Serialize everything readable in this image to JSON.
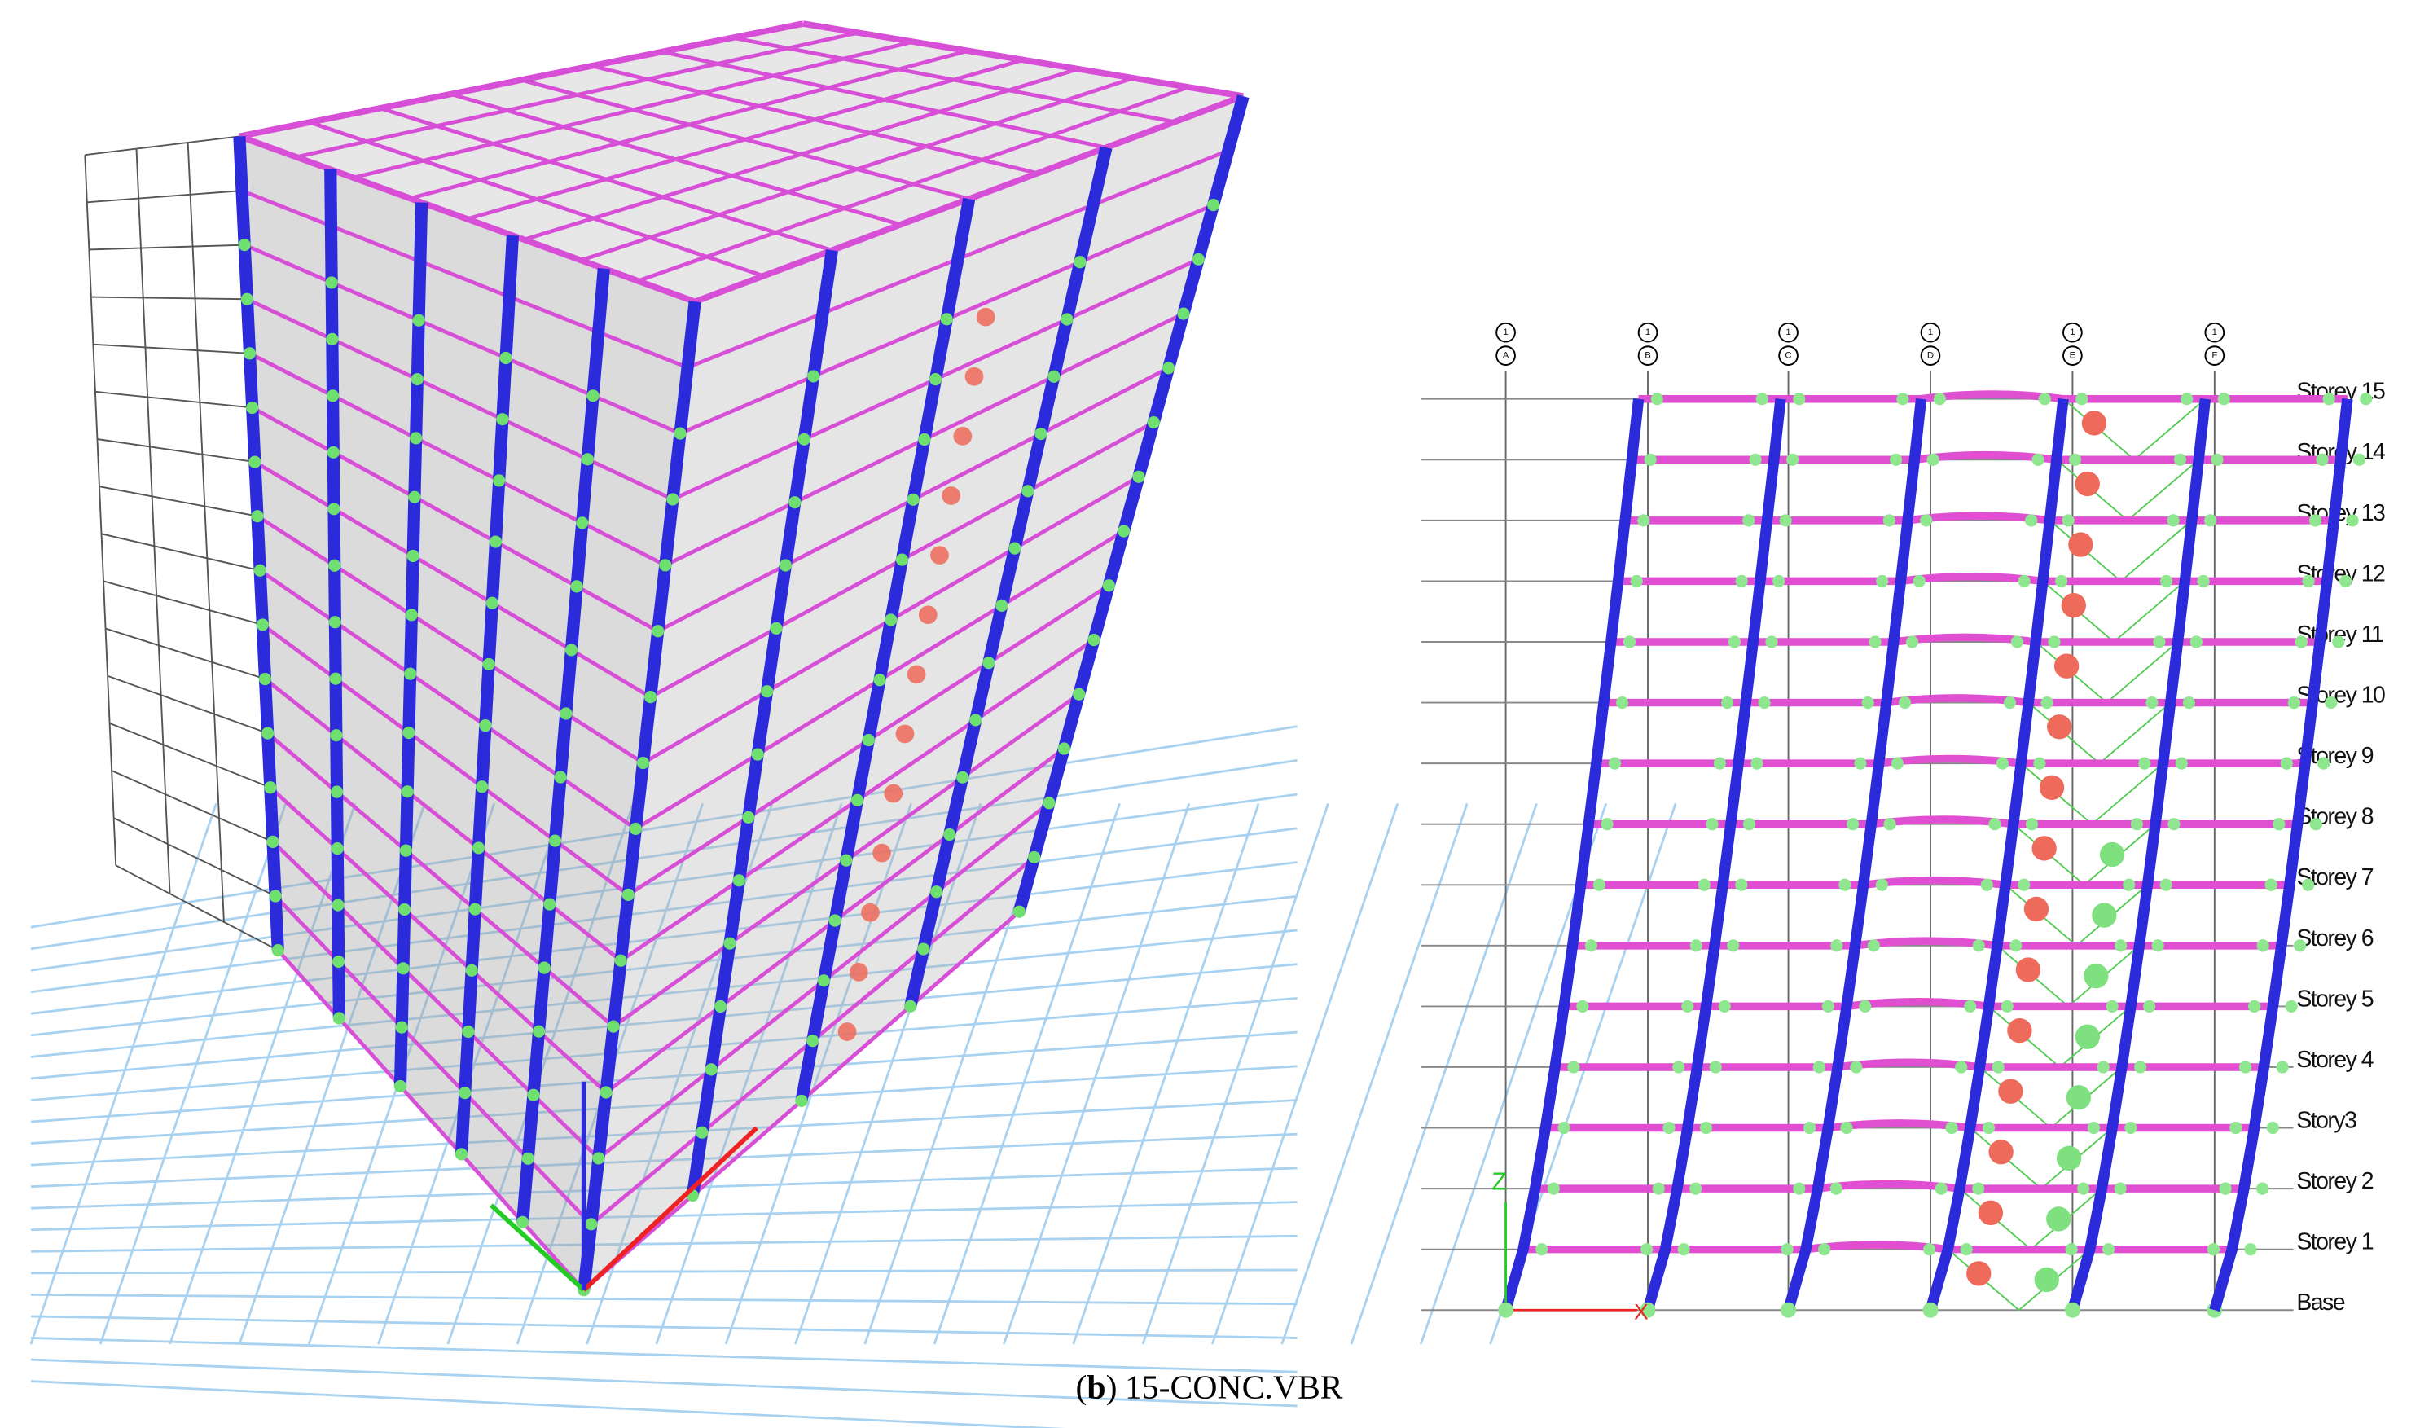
{
  "grid_lines": [
    {
      "row": "1",
      "col": "A"
    },
    {
      "row": "1",
      "col": "B"
    },
    {
      "row": "1",
      "col": "C"
    },
    {
      "row": "1",
      "col": "D"
    },
    {
      "row": "1",
      "col": "E"
    },
    {
      "row": "1",
      "col": "F"
    }
  ],
  "storeys": [
    "Storey 15",
    "Storey 14",
    "Storey 13",
    "Storey 12",
    "Storey 11",
    "Storey 10",
    "Storey 9",
    "Storey 8",
    "Storey 7",
    "Storey 6",
    "Storey 5",
    "Storey 4",
    "Story3",
    "Storey 2",
    "Storey 1",
    "Base"
  ],
  "axes": {
    "vertical": "Z",
    "horizontal": "X"
  },
  "caption": {
    "open": "(",
    "label": "b",
    "close": ")",
    "text": "15-CONC.VBR"
  }
}
